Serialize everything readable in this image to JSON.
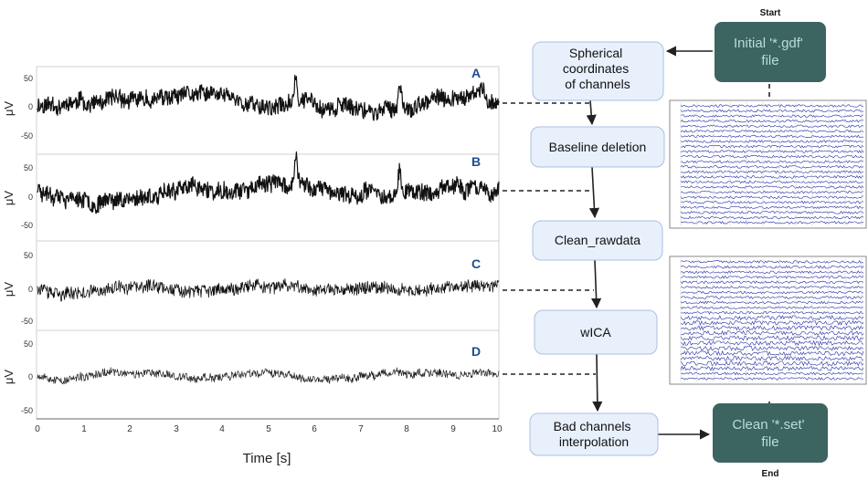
{
  "panels": [
    {
      "letter": "A",
      "amp": 14,
      "spikes": true,
      "lw": 1.2,
      "seed": 11
    },
    {
      "letter": "B",
      "amp": 14,
      "spikes": true,
      "lw": 1.2,
      "seed": 23
    },
    {
      "letter": "C",
      "amp": 11,
      "spikes": false,
      "lw": 0.8,
      "seed": 37
    },
    {
      "letter": "D",
      "amp": 7,
      "spikes": false,
      "lw": 0.7,
      "seed": 53
    }
  ],
  "y_ticks": [
    "50",
    "0",
    "-50"
  ],
  "y_label": "μV",
  "x_ticks": [
    "0",
    "1",
    "2",
    "3",
    "4",
    "5",
    "6",
    "7",
    "8",
    "9",
    "10"
  ],
  "x_label": "Time [s]",
  "flow": {
    "start_label": "Start",
    "end_label": "End",
    "initial_file": "Initial '*.gdf' file",
    "clean_file": "Clean '*.set' file",
    "steps": [
      "Spherical coordinates of channels",
      "Baseline deletion",
      "Clean_rawdata",
      "wICA",
      "Bad channels interpolation"
    ]
  },
  "colors": {
    "step_fill": "#e8f0fb",
    "step_stroke": "#a9c0e0",
    "file_fill": "#3c6461",
    "file_text": "#b9ddd9",
    "letter": "#1f4e8c",
    "eeg_trace": "#1e2aa0"
  }
}
